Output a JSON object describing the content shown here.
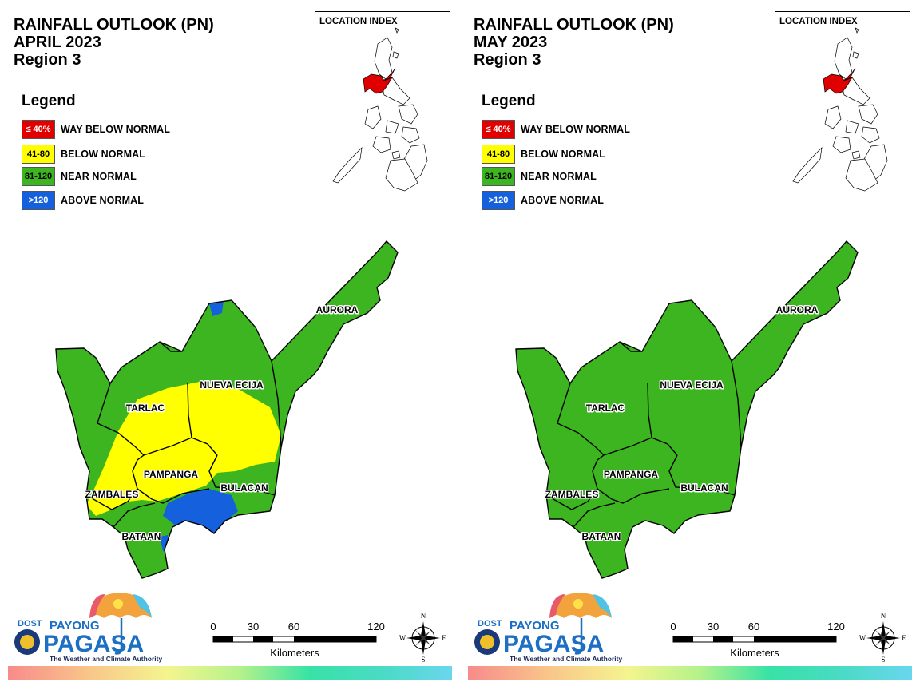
{
  "panels": [
    {
      "title_lines": [
        "RAINFALL OUTLOOK (PN)",
        "APRIL 2023",
        "Region 3"
      ],
      "legend_title": "Legend",
      "legend": [
        {
          "code": "≤ 40%",
          "label": "WAY BELOW NORMAL",
          "color": "#e00000",
          "text_color": "#ffffff"
        },
        {
          "code": "41-80",
          "label": "BELOW NORMAL",
          "color": "#ffff00",
          "text_color": "#000000"
        },
        {
          "code": "81-120",
          "label": "NEAR NORMAL",
          "color": "#3cb521",
          "text_color": "#000000"
        },
        {
          "code": ">120",
          "label": "ABOVE NORMAL",
          "color": "#1560dc",
          "text_color": "#ffffff"
        }
      ],
      "index_title": "LOCATION INDEX",
      "provinces": {
        "aurora": "AURORA",
        "nueva_ecija": "NUEVA ECIJA",
        "tarlac": "TARLAC",
        "pampanga": "PAMPANGA",
        "bulacan": "BULACAN",
        "zambales": "ZAMBALES",
        "bataan": "BATAAN"
      },
      "outlook_categories_shown": [
        "NEAR NORMAL",
        "BELOW NORMAL",
        "ABOVE NORMAL"
      ]
    },
    {
      "title_lines": [
        "RAINFALL OUTLOOK (PN)",
        "MAY 2023",
        "Region 3"
      ],
      "legend_title": "Legend",
      "legend": [
        {
          "code": "≤ 40%",
          "label": "WAY BELOW NORMAL",
          "color": "#e00000",
          "text_color": "#ffffff"
        },
        {
          "code": "41-80",
          "label": "BELOW NORMAL",
          "color": "#ffff00",
          "text_color": "#000000"
        },
        {
          "code": "81-120",
          "label": "NEAR NORMAL",
          "color": "#3cb521",
          "text_color": "#000000"
        },
        {
          "code": ">120",
          "label": "ABOVE NORMAL",
          "color": "#1560dc",
          "text_color": "#ffffff"
        }
      ],
      "index_title": "LOCATION INDEX",
      "provinces": {
        "aurora": "AURORA",
        "nueva_ecija": "NUEVA ECIJA",
        "tarlac": "TARLAC",
        "pampanga": "PAMPANGA",
        "bulacan": "BULACAN",
        "zambales": "ZAMBALES",
        "bataan": "BATAAN"
      },
      "outlook_categories_shown": [
        "NEAR NORMAL"
      ]
    }
  ],
  "logo": {
    "dost": "DOST",
    "payong": "PAYONG",
    "pagasa": "PAGASA",
    "tagline": "The Weather and Climate Authority"
  },
  "scale": {
    "ticks": [
      "0",
      "30",
      "60",
      "120"
    ],
    "unit": "Kilometers"
  },
  "compass": {
    "n": "N",
    "s": "S",
    "e": "E",
    "w": "W"
  },
  "colors": {
    "near_normal": "#3cb521",
    "below_normal": "#ffff00",
    "above_normal": "#1560dc",
    "highlight": "#e00000"
  }
}
